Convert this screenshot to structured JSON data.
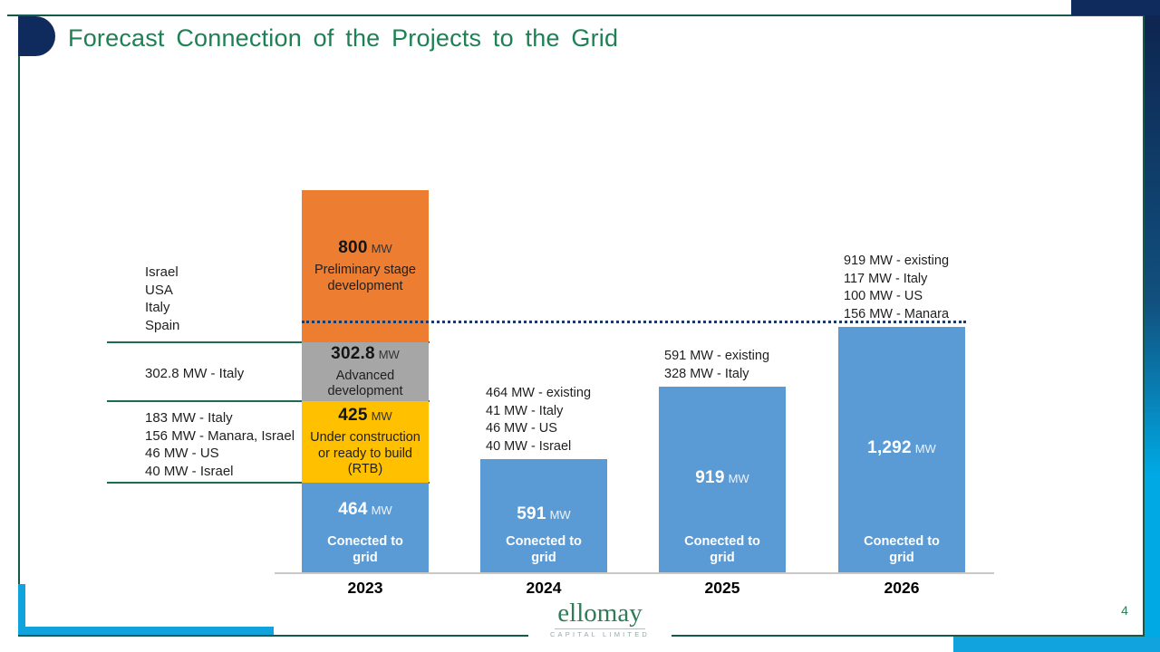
{
  "slide": {
    "title": "Forecast Connection of the Projects to the Grid",
    "page_number": "4",
    "logo": {
      "name": "ellomay",
      "subtitle": "CAPITAL LIMITED"
    }
  },
  "colors": {
    "title_green": "#1E8155",
    "frame_green": "#145A4B",
    "separator_green": "#1D6B52",
    "navy": "#0F2A5C",
    "cyan": "#11A3DE",
    "bar_blue": "#5B9BD5",
    "bar_yellow": "#FFC000",
    "bar_gray": "#A6A6A6",
    "bar_orange": "#ED7D31",
    "dotted_navy": "#1F3864"
  },
  "chart_data": {
    "type": "bar",
    "stacked": true,
    "unit": "MW",
    "title": "Forecast Connection of the Projects to the Grid",
    "categories": [
      "2023",
      "2024",
      "2025",
      "2026"
    ],
    "dotted_line_mw": 1292,
    "columns": [
      {
        "year": "2023",
        "annotation_lines": [],
        "segments": [
          {
            "value": 464,
            "value_label": "464",
            "unit": "MW",
            "kind": "connected",
            "label_lines": [
              "Conected to",
              "grid"
            ],
            "color": "#5B9BD5"
          },
          {
            "value": 425,
            "value_label": "425",
            "unit": "MW",
            "kind": "pipeline",
            "label_lines": [
              "Under construction",
              "or ready to build",
              "(RTB)"
            ],
            "color": "#FFC000"
          },
          {
            "value": 302.8,
            "value_label": "302.8",
            "unit": "MW",
            "kind": "pipeline",
            "label_lines": [
              "Advanced",
              "development"
            ],
            "color": "#A6A6A6"
          },
          {
            "value": 800,
            "value_label": "800",
            "unit": "MW",
            "kind": "pipeline",
            "label_lines": [
              "Preliminary stage",
              "development"
            ],
            "color": "#ED7D31"
          }
        ]
      },
      {
        "year": "2024",
        "annotation_lines": [
          "464 MW - existing",
          "41 MW - Italy",
          "46 MW - US",
          "40 MW - Israel"
        ],
        "segments": [
          {
            "value": 591,
            "value_label": "591",
            "unit": "MW",
            "kind": "connected",
            "label_lines": [
              "Conected to",
              "grid"
            ],
            "color": "#5B9BD5"
          }
        ]
      },
      {
        "year": "2025",
        "annotation_lines": [
          "591 MW - existing",
          "328 MW - Italy"
        ],
        "segments": [
          {
            "value": 919,
            "value_label": "919",
            "unit": "MW",
            "kind": "connected",
            "label_lines": [
              "Conected to",
              "grid"
            ],
            "color": "#5B9BD5"
          }
        ]
      },
      {
        "year": "2026",
        "annotation_lines": [
          "919 MW - existing",
          "117 MW - Italy",
          "100 MW - US",
          "156 MW - Manara"
        ],
        "segments": [
          {
            "value": 1292,
            "value_label": "1,292",
            "unit": "MW",
            "kind": "connected",
            "label_lines": [
              "Conected to",
              "grid"
            ],
            "color": "#5B9BD5"
          }
        ]
      }
    ],
    "left_annotations": [
      {
        "lines": [
          "Israel",
          "USA",
          "Italy",
          "Spain"
        ]
      },
      {
        "lines": [
          "302.8 MW - Italy"
        ]
      },
      {
        "lines": [
          "183 MW - Italy",
          "156 MW - Manara, Israel",
          "46 MW - US",
          "40 MW - Israel"
        ]
      }
    ]
  }
}
